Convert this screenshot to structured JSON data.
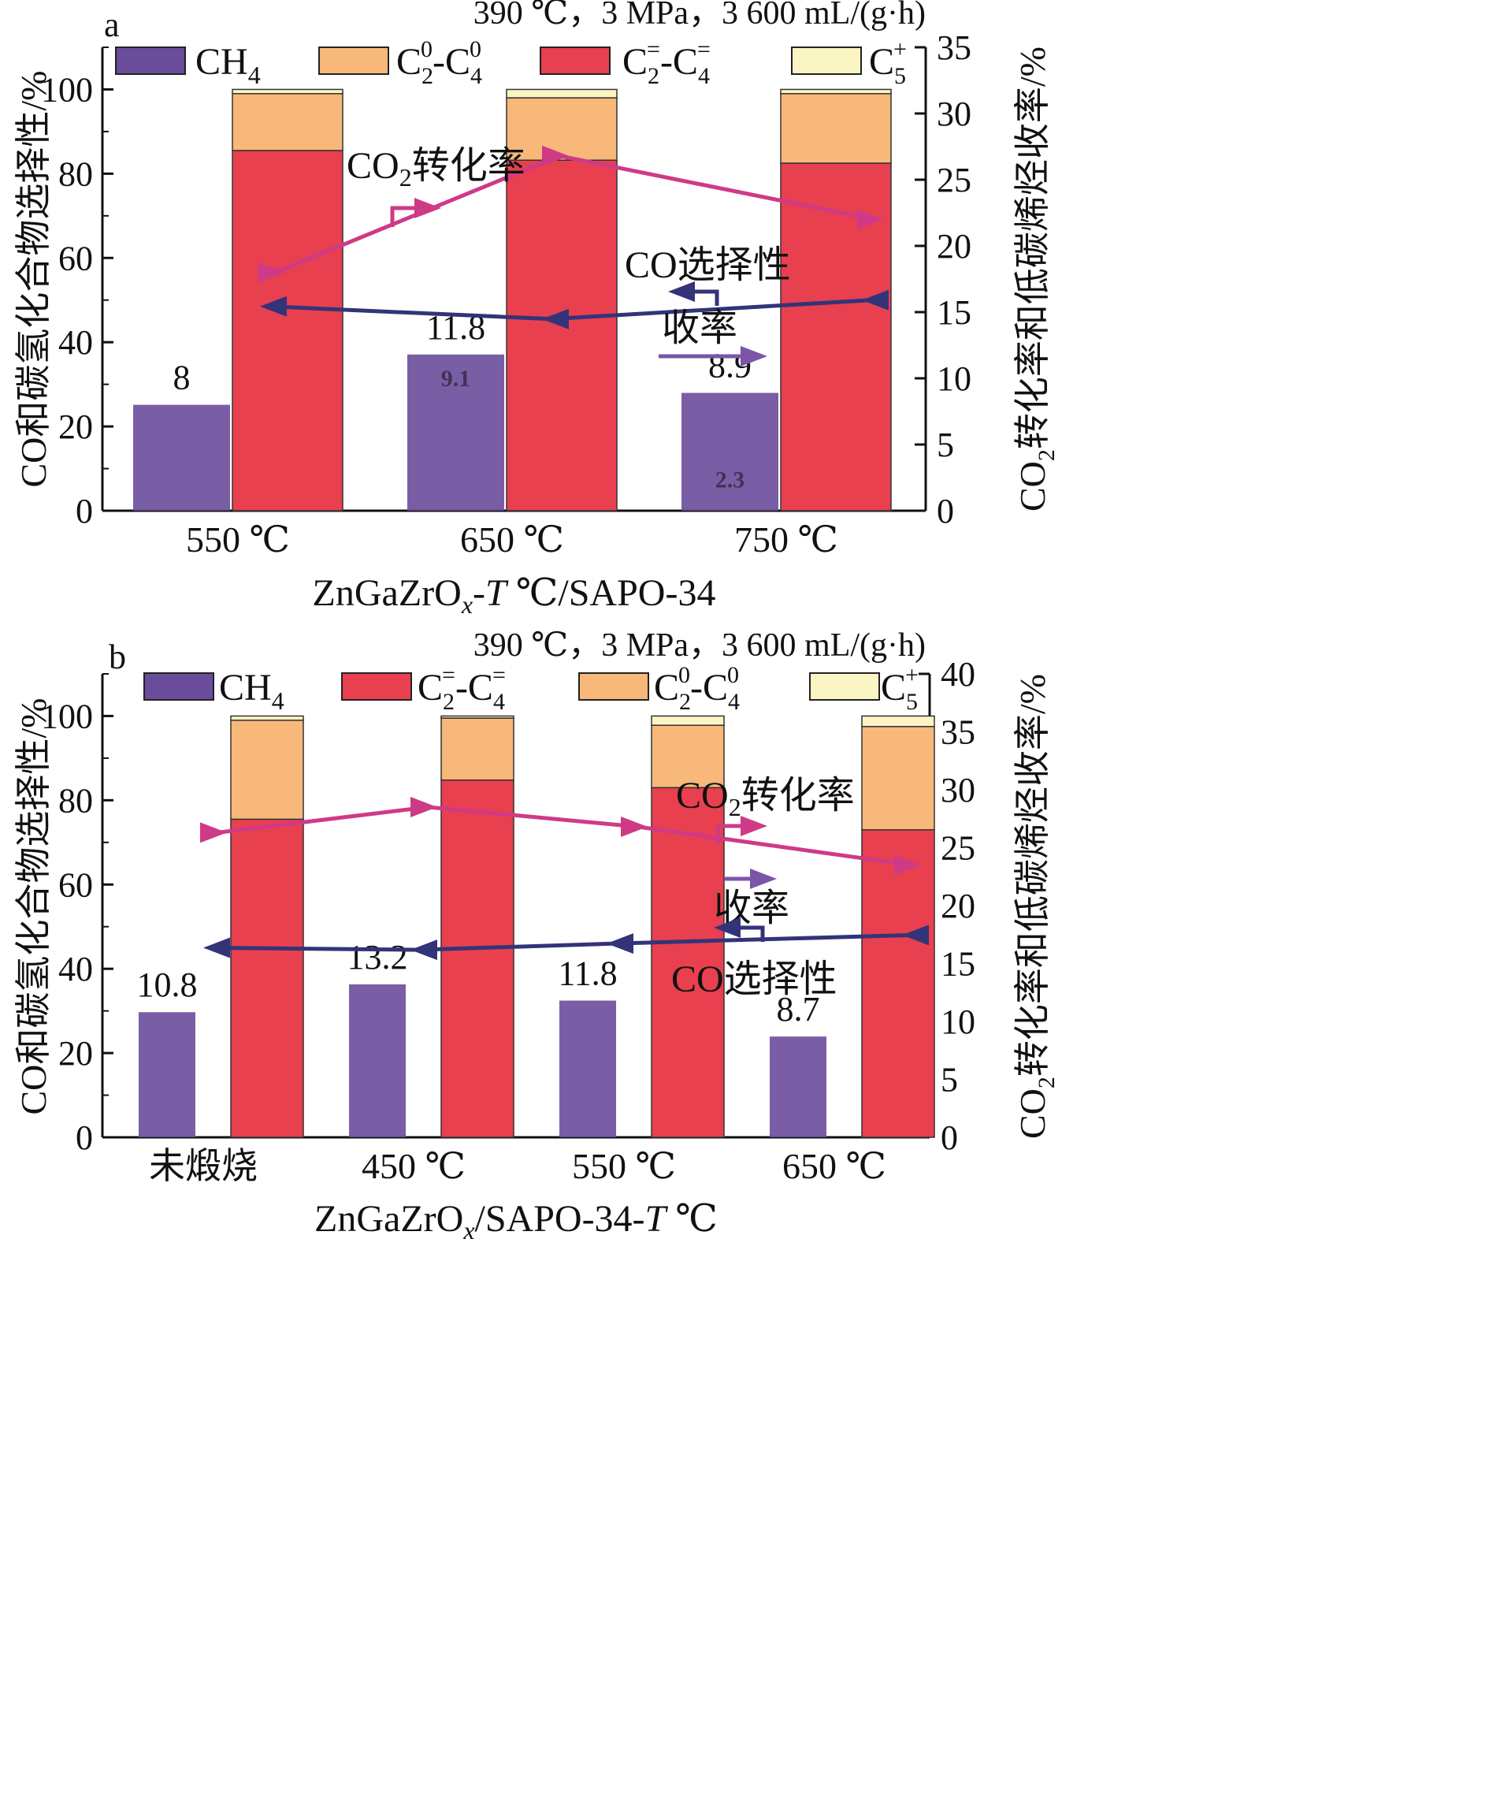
{
  "chart_data": [
    {
      "panel_label": "a",
      "type": "bar",
      "conditions": "390 ℃，3 MPa，3 600 mL/(g·h)",
      "categories": [
        "550 ℃",
        "650 ℃",
        "750 ℃"
      ],
      "xlabel": "ZnGaZrOx-T ℃/SAPO-34",
      "xlabel_parts": {
        "a": "ZnGaZrO",
        "sub": "x",
        "b": "-",
        "it": "T",
        "c": " ℃/SAPO-34"
      },
      "ylabel_left": "CO和碳氢化合物选择性/%",
      "ylabel_right": "CO2转化率和低碳烯烃收率/%",
      "ylabel_right_parts": {
        "a": "CO",
        "sub": "2",
        "b": "转化率和低碳烯烃收率/%"
      },
      "ylim_left": [
        0,
        110
      ],
      "ylim_right": [
        0,
        35
      ],
      "yticks_left": [
        0,
        20,
        40,
        60,
        80,
        100
      ],
      "yticks_right": [
        0,
        5,
        10,
        15,
        20,
        25,
        30,
        35
      ],
      "legend": [
        {
          "key": "ch4",
          "main": "CH",
          "sub": "4",
          "sup": "",
          "tail": "",
          "color": "#6a4c9c"
        },
        {
          "key": "paraffin",
          "main": "C",
          "sub": "2",
          "sup": "0",
          "tail": "-C",
          "sub2": "4",
          "sup2": "0",
          "color": "#f7b87a"
        },
        {
          "key": "olefin",
          "main": "C",
          "sub": "2",
          "sup": "=",
          "tail": "-C",
          "sub2": "4",
          "sup2": "=",
          "color": "#e8404f"
        },
        {
          "key": "c5",
          "main": "C",
          "sub": "5",
          "sup": "+",
          "tail": "",
          "color": "#fbf5c4"
        }
      ],
      "series": {
        "ch4_bar_right_axis": [
          8,
          11.8,
          8.9
        ],
        "olefin_selectivity": [
          85.5,
          83.2,
          82.5
        ],
        "paraffin_selectivity": [
          13.5,
          14.8,
          16.5
        ],
        "c5_selectivity": [
          1.0,
          2.0,
          1.0
        ],
        "co2_conversion": [
          18.0,
          26.8,
          22.0
        ],
        "co_selectivity": [
          48.5,
          45.5,
          50.0
        ]
      },
      "bar_labels": [
        "8",
        "11.8",
        "8.9"
      ],
      "line_labels": {
        "co2": {
          "a": "CO",
          "sub": "2",
          "b": "转化率"
        },
        "co": "CO选择性",
        "yield": "收率"
      }
    },
    {
      "panel_label": "b",
      "type": "bar",
      "conditions": "390 ℃，3 MPa，3 600 mL/(g·h)",
      "categories": [
        "未煅烧",
        "450 ℃",
        "550 ℃",
        "650 ℃"
      ],
      "xlabel": "ZnGaZrOx/SAPO-34-T ℃",
      "xlabel_parts": {
        "a": "ZnGaZrO",
        "sub": "x",
        "b": "/SAPO-34-",
        "it": "T",
        "c": " ℃"
      },
      "ylabel_left": "CO和碳氢化合物选择性/%",
      "ylabel_right": "CO2转化率和低碳烯烃收率/%",
      "ylabel_right_parts": {
        "a": "CO",
        "sub": "2",
        "b": "转化率和低碳烯烃收率/%"
      },
      "ylim_left": [
        0,
        110
      ],
      "ylim_right": [
        0,
        40
      ],
      "yticks_left": [
        0,
        20,
        40,
        60,
        80,
        100
      ],
      "yticks_right": [
        0,
        5,
        10,
        15,
        20,
        25,
        30,
        35,
        40
      ],
      "legend": [
        {
          "key": "ch4",
          "main": "CH",
          "sub": "4",
          "sup": "",
          "tail": "",
          "color": "#6a4c9c"
        },
        {
          "key": "olefin",
          "main": "C",
          "sub": "2",
          "sup": "=",
          "tail": "-C",
          "sub2": "4",
          "sup2": "=",
          "color": "#e8404f"
        },
        {
          "key": "paraffin",
          "main": "C",
          "sub": "2",
          "sup": "0",
          "tail": "-C",
          "sub2": "4",
          "sup2": "0",
          "color": "#f7b87a"
        },
        {
          "key": "c5",
          "main": "C",
          "sub": "5",
          "sup": "+",
          "tail": "",
          "color": "#fbf5c4"
        }
      ],
      "series": {
        "ch4_bar_right_axis": [
          10.8,
          13.2,
          11.8,
          8.7
        ],
        "olefin_selectivity": [
          75.5,
          84.8,
          83.0,
          73.0
        ],
        "paraffin_selectivity": [
          23.5,
          14.7,
          14.8,
          24.5
        ],
        "c5_selectivity": [
          1.0,
          0.5,
          2.2,
          2.5
        ],
        "co2_conversion": [
          26.3,
          28.5,
          26.8,
          23.5
        ],
        "co_selectivity": [
          45.0,
          44.5,
          46.0,
          48.0
        ]
      },
      "bar_labels": [
        "10.8",
        "13.2",
        "11.8",
        "8.7"
      ],
      "line_labels": {
        "co2": {
          "a": "CO",
          "sub": "2",
          "b": "转化率"
        },
        "co": "CO选择性",
        "yield": "收率"
      }
    }
  ],
  "colors": {
    "ch4": "#6a4c9c",
    "olefin": "#e8404f",
    "paraffin": "#f7b87a",
    "c5": "#fbf5c4",
    "co2_line": "#cf3a86",
    "co_line": "#33337a"
  }
}
